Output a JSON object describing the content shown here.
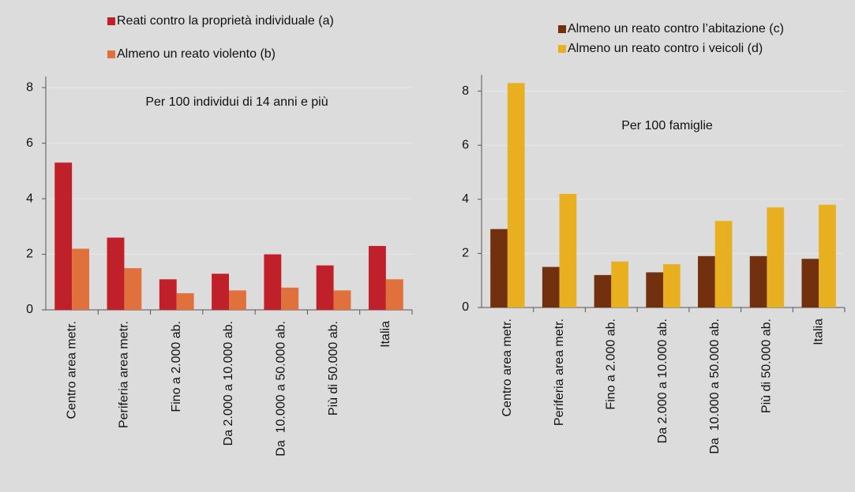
{
  "chart_data": [
    {
      "type": "bar",
      "annotation": "Per 100 individui di 14 anni e più",
      "categories": [
        "Centro area metr.",
        "Periferia area metr.",
        "Fino a 2.000 ab.",
        "Da 2.000 a 10.000 ab.",
        "Da  10.000 a 50.000 ab.",
        "Più di 50.000 ab.",
        "Italia"
      ],
      "series": [
        {
          "name": "Reati contro la proprietà individuale (a)",
          "color": "#c0202a",
          "values": [
            5.3,
            2.6,
            1.1,
            1.3,
            2.0,
            1.6,
            2.3
          ]
        },
        {
          "name": "Almeno un reato violento (b)",
          "color": "#e0703c",
          "values": [
            2.2,
            1.5,
            0.6,
            0.7,
            0.8,
            0.7,
            1.1
          ]
        }
      ],
      "ylim": [
        0,
        8.4
      ],
      "yticks": [
        0,
        2,
        4,
        6,
        8
      ],
      "grid": true
    },
    {
      "type": "bar",
      "annotation": "Per 100 famiglie",
      "categories": [
        "Centro area metr.",
        "Periferia area metr.",
        "Fino a 2.000 ab.",
        "Da 2.000 a 10.000 ab.",
        "Da  10.000 a 50.000 ab.",
        "Più di 50.000 ab.",
        "Italia"
      ],
      "series": [
        {
          "name": "Almeno un reato contro l’abitazione (c)",
          "color": "#73300f",
          "values": [
            2.9,
            1.5,
            1.2,
            1.3,
            1.9,
            1.9,
            1.8
          ]
        },
        {
          "name": "Almeno un reato contro i veicoli (d)",
          "color": "#e8b020",
          "values": [
            8.3,
            4.2,
            1.7,
            1.6,
            3.2,
            3.7,
            3.8
          ]
        }
      ],
      "ylim": [
        0,
        8.6
      ],
      "yticks": [
        0,
        2,
        4,
        6,
        8
      ],
      "grid": true
    }
  ]
}
